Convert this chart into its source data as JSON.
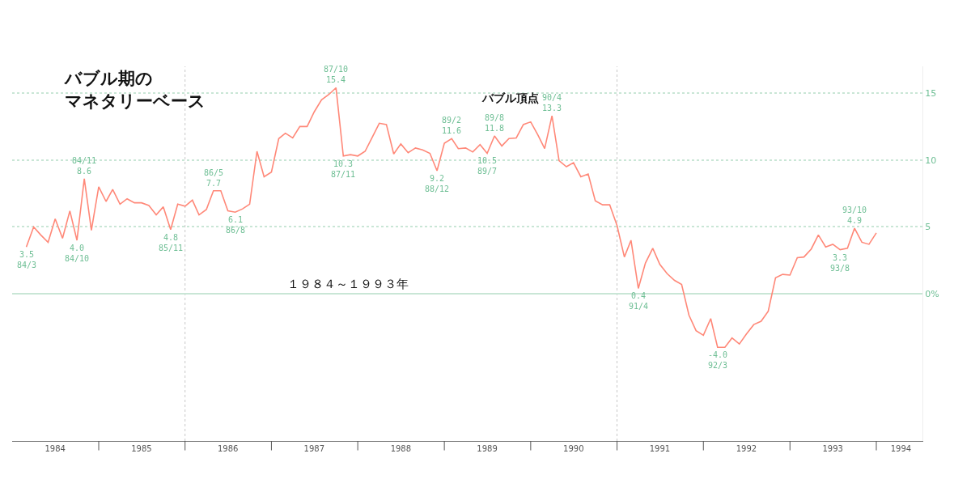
{
  "chart_data": {
    "type": "line",
    "title": "バブル期のマネタリーベース",
    "x": [
      "1984-03",
      "1984-04",
      "1984-05",
      "1984-06",
      "1984-07",
      "1984-08",
      "1984-09",
      "1984-10",
      "1984-11",
      "1984-12",
      "1985-01",
      "1985-02",
      "1985-03",
      "1985-04",
      "1985-05",
      "1985-06",
      "1985-07",
      "1985-08",
      "1985-09",
      "1985-10",
      "1985-11",
      "1985-12",
      "1986-01",
      "1986-02",
      "1986-03",
      "1986-04",
      "1986-05",
      "1986-06",
      "1986-07",
      "1986-08",
      "1986-09",
      "1986-10",
      "1986-11",
      "1986-12",
      "1987-01",
      "1987-02",
      "1987-03",
      "1987-04",
      "1987-05",
      "1987-06",
      "1987-07",
      "1987-08",
      "1987-09",
      "1987-10",
      "1987-11",
      "1987-12",
      "1988-01",
      "1988-02",
      "1988-03",
      "1988-04",
      "1988-05",
      "1988-06",
      "1988-07",
      "1988-08",
      "1988-09",
      "1988-10",
      "1988-11",
      "1988-12",
      "1989-01",
      "1989-02",
      "1989-03",
      "1989-04",
      "1989-05",
      "1989-06",
      "1989-07",
      "1989-08",
      "1989-09",
      "1989-10",
      "1989-11",
      "1989-12",
      "1990-01",
      "1990-02",
      "1990-03",
      "1990-04",
      "1990-05",
      "1990-06",
      "1990-07",
      "1990-08",
      "1990-09",
      "1990-10",
      "1990-11",
      "1990-12",
      "1991-01",
      "1991-02",
      "1991-03",
      "1991-04",
      "1991-05",
      "1991-06",
      "1991-07",
      "1991-08",
      "1991-09",
      "1991-10",
      "1991-11",
      "1991-12",
      "1992-01",
      "1992-02",
      "1992-03",
      "1992-04",
      "1992-05",
      "1992-06",
      "1992-07",
      "1992-08",
      "1992-09",
      "1992-10",
      "1992-11",
      "1992-12",
      "1993-01",
      "1993-02",
      "1993-03",
      "1993-04",
      "1993-05",
      "1993-06",
      "1993-07",
      "1993-08",
      "1993-09",
      "1993-10",
      "1993-11",
      "1993-12",
      "1994-01"
    ],
    "series": [
      {
        "color": "#ff8878",
        "values": [
          3.5,
          5.0,
          4.4,
          3.85,
          5.6,
          4.15,
          6.2,
          4.0,
          8.6,
          4.75,
          8.0,
          6.9,
          7.8,
          6.7,
          7.1,
          6.8,
          6.8,
          6.6,
          5.9,
          6.5,
          4.8,
          6.7,
          6.55,
          7.0,
          5.9,
          6.3,
          7.7,
          7.7,
          6.2,
          6.1,
          6.35,
          6.7,
          10.65,
          8.75,
          9.1,
          11.6,
          12.0,
          11.65,
          12.5,
          12.5,
          13.6,
          14.5,
          14.9,
          15.4,
          10.3,
          10.4,
          10.3,
          10.65,
          11.65,
          12.75,
          12.65,
          10.45,
          11.2,
          10.55,
          10.9,
          10.75,
          10.5,
          9.2,
          11.25,
          11.6,
          10.85,
          10.9,
          10.6,
          11.15,
          10.5,
          11.8,
          11.05,
          11.6,
          11.65,
          12.65,
          12.85,
          11.85,
          10.85,
          13.3,
          9.95,
          9.5,
          9.8,
          8.75,
          8.95,
          6.95,
          6.65,
          6.65,
          5.1,
          2.75,
          4.0,
          0.4,
          2.3,
          3.4,
          2.2,
          1.5,
          1.0,
          0.7,
          -1.6,
          -2.75,
          -3.1,
          -1.85,
          -4.0,
          -4.0,
          -3.3,
          -3.75,
          -3.0,
          -2.3,
          -2.05,
          -1.3,
          1.2,
          1.45,
          1.4,
          2.7,
          2.75,
          3.35,
          4.4,
          3.5,
          3.7,
          3.3,
          3.4,
          4.9,
          3.85,
          3.7,
          4.55
        ]
      }
    ],
    "xlim": [
      "1984-01-01",
      "1994-07-15"
    ],
    "xticks": [
      {
        "value": "1984-07-01",
        "label": "1984"
      },
      {
        "value": "1985-07-01",
        "label": "1985"
      },
      {
        "value": "1986-07-01",
        "label": "1986"
      },
      {
        "value": "1987-07-01",
        "label": "1987"
      },
      {
        "value": "1988-07-01",
        "label": "1988"
      },
      {
        "value": "1989-07-01",
        "label": "1989"
      },
      {
        "value": "1990-07-01",
        "label": "1990"
      },
      {
        "value": "1991-07-01",
        "label": "1991"
      },
      {
        "value": "1992-07-01",
        "label": "1992"
      },
      {
        "value": "1993-07-01",
        "label": "1993"
      },
      {
        "value": "1994-04-15",
        "label": "1994"
      },
      {
        "value": "1985-01-01",
        "label": null
      },
      {
        "value": "1986-01-01",
        "label": null
      },
      {
        "value": "1987-01-01",
        "label": null
      },
      {
        "value": "1988-01-01",
        "label": null
      },
      {
        "value": "1989-01-01",
        "label": null
      },
      {
        "value": "1990-01-01",
        "label": null
      },
      {
        "value": "1991-01-01",
        "label": null
      },
      {
        "value": "1992-01-01",
        "label": null
      },
      {
        "value": "1993-01-01",
        "label": null
      },
      {
        "value": "1994-01-01",
        "label": null
      }
    ],
    "ylim": [
      -11,
      17
    ],
    "yticks": [
      {
        "value": 0,
        "label": "0%"
      },
      5,
      10,
      15
    ],
    "grid": "y",
    "legend": false,
    "marker": "none",
    "line_style": "solid",
    "ref_lines": [
      {
        "axis": "x",
        "value": "1986-01-01",
        "color": "#c8c8c8",
        "line_style": "dotted"
      },
      {
        "axis": "x",
        "value": "1991-01-01",
        "color": "#c8c8c8",
        "line_style": "dotted"
      }
    ],
    "annotations": [
      "１９８４～１９９３年",
      {
        "text": "3.5\n84/3",
        "x": "1984-03",
        "y": 3.5
      },
      {
        "text": "4.0\n84/10",
        "x": "1984-10",
        "y": 4.0
      },
      {
        "text": "84/11\n8.6",
        "x": "1984-11",
        "y": 8.6
      },
      {
        "text": "4.8\n85/11",
        "x": "1985-11",
        "y": 4.8
      },
      {
        "text": "86/5\n7.7",
        "x": "1986-05",
        "y": 7.7
      },
      {
        "text": "6.1\n86/8",
        "x": "1986-08",
        "y": 6.1
      },
      {
        "text": "87/10\n15.4",
        "x": "1987-10",
        "y": 15.4
      },
      {
        "text": "10.3\n87/11",
        "x": "1987-11",
        "y": 10.3
      },
      {
        "text": "9.2\n88/12",
        "x": "1988-12",
        "y": 9.2
      },
      {
        "text": "89/2\n11.6",
        "x": "1989-02",
        "y": 11.6
      },
      {
        "text": "10.5\n89/7",
        "x": "1989-07",
        "y": 10.5
      },
      {
        "text": "89/8\n11.8",
        "x": "1989-08",
        "y": 11.8
      },
      {
        "text": "90/4\n13.3",
        "x": "1990-04",
        "y": 13.3
      },
      {
        "text": "バブル頂点",
        "x": "1990-04",
        "y": 13.3
      },
      {
        "text": "0.4\n91/4",
        "x": "1991-04",
        "y": 0.4
      },
      {
        "text": "-4.0\n92/3",
        "x": "1992-03",
        "y": -4.0
      },
      {
        "text": "3.3\n93/8",
        "x": "1993-08",
        "y": 3.3
      },
      {
        "text": "93/10\n4.9",
        "x": "1993-10",
        "y": 4.9
      }
    ]
  }
}
